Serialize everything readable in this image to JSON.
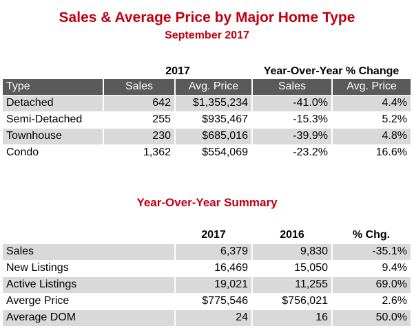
{
  "title": "Sales & Average Price by Major Home Type",
  "subtitle": "September 2017",
  "type_table": {
    "group_2017": "2017",
    "group_yoy": "Year-Over-Year % Change",
    "headers": [
      "Type",
      "Sales",
      "Avg. Price",
      "Sales",
      "Avg. Price"
    ],
    "rows": [
      [
        "Detached",
        "642",
        "$1,355,234",
        "-41.0%",
        "4.4%"
      ],
      [
        "Semi-Detached",
        "255",
        "$935,467",
        "-15.3%",
        "5.2%"
      ],
      [
        "Townhouse",
        "230",
        "$685,016",
        "-39.9%",
        "4.8%"
      ],
      [
        "Condo",
        "1,362",
        "$554,069",
        "-23.2%",
        "16.6%"
      ]
    ]
  },
  "summary_title": "Year-Over-Year Summary",
  "summary_table": {
    "headers": [
      "",
      "2017",
      "2016",
      "% Chg."
    ],
    "rows": [
      [
        "Sales",
        "6,379",
        "9,830",
        "-35.1%"
      ],
      [
        "New Listings",
        "16,469",
        "15,050",
        "9.4%"
      ],
      [
        "Active Listings",
        "19,021",
        "11,255",
        "69.0%"
      ],
      [
        "Averge Price",
        "$775,546",
        "$756,021",
        "2.6%"
      ],
      [
        "Average DOM",
        "24",
        "16",
        "50.0%"
      ]
    ]
  },
  "colors": {
    "title_red": "#c00010",
    "header_gray": "#5a5a5a",
    "row_shade": "#d9d9d9"
  }
}
